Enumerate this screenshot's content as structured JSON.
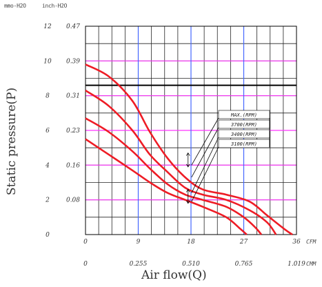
{
  "units_top": {
    "left": "mmo-H2O",
    "right": "inch-H2O"
  },
  "chart_data": {
    "type": "line",
    "title": "",
    "xlabel": "Air flow(Q)",
    "ylabel": "Static pressure(P)",
    "x_primary": {
      "unit": "CFM",
      "ticks": [
        "0",
        "9",
        "18",
        "27",
        "36"
      ],
      "range": [
        0,
        36
      ]
    },
    "x_secondary": {
      "unit": "CMM",
      "ticks": [
        "0",
        "0.255",
        "0.510",
        "0.765",
        "1.019"
      ]
    },
    "y_primary": {
      "unit": "mmo-H2O",
      "ticks": [
        "0",
        "2",
        "4",
        "6",
        "8",
        "10",
        "12"
      ],
      "range": [
        0,
        12
      ]
    },
    "y_secondary": {
      "unit": "inch-H2O",
      "ticks": [
        "0.08",
        "0.16",
        "0.23",
        "0.31",
        "0.39",
        "0.47"
      ]
    },
    "grid": true,
    "grid_minor_step": 2.25,
    "magenta_lines_y": [
      2,
      4,
      6,
      8,
      10
    ],
    "reference_line_y": 8.6,
    "blue_lines_x": [
      9,
      18,
      27
    ],
    "legend": [
      "MAX.(RPM)",
      "3700(RPM)",
      "3400(RPM)",
      "3100(RPM)"
    ],
    "series": [
      {
        "name": "MAX.(RPM)",
        "points": [
          [
            0,
            9.8
          ],
          [
            4,
            9.1
          ],
          [
            8,
            7.7
          ],
          [
            11,
            5.9
          ],
          [
            14,
            4.4
          ],
          [
            17,
            3.3
          ],
          [
            20,
            2.6
          ],
          [
            24,
            2.3
          ],
          [
            28,
            1.9
          ],
          [
            31,
            1.1
          ],
          [
            34,
            0.3
          ],
          [
            35.3,
            0
          ]
        ]
      },
      {
        "name": "3700(RPM)",
        "points": [
          [
            0,
            8.3
          ],
          [
            4,
            7.4
          ],
          [
            8,
            6.0
          ],
          [
            11,
            4.6
          ],
          [
            14,
            3.6
          ],
          [
            17,
            2.7
          ],
          [
            20,
            2.3
          ],
          [
            24,
            2.0
          ],
          [
            28,
            1.4
          ],
          [
            31,
            0.7
          ],
          [
            32.5,
            0
          ]
        ]
      },
      {
        "name": "3400(RPM)",
        "points": [
          [
            0,
            6.7
          ],
          [
            4,
            5.9
          ],
          [
            8,
            4.8
          ],
          [
            11,
            3.8
          ],
          [
            14,
            2.9
          ],
          [
            17,
            2.3
          ],
          [
            20,
            2.0
          ],
          [
            24,
            1.6
          ],
          [
            27,
            1.0
          ],
          [
            29,
            0.4
          ],
          [
            30,
            0
          ]
        ]
      },
      {
        "name": "3100(RPM)",
        "points": [
          [
            0,
            5.5
          ],
          [
            4,
            4.6
          ],
          [
            8,
            3.7
          ],
          [
            11,
            3.0
          ],
          [
            14,
            2.4
          ],
          [
            17,
            2.0
          ],
          [
            20,
            1.6
          ],
          [
            24,
            1.0
          ],
          [
            26.5,
            0.3
          ],
          [
            27.5,
            0
          ]
        ]
      }
    ],
    "colors": {
      "curve": "#ee1c25",
      "grid": "#222222",
      "magenta": "#ff33ff",
      "blue": "#4466ff",
      "reference": "#000000"
    }
  }
}
